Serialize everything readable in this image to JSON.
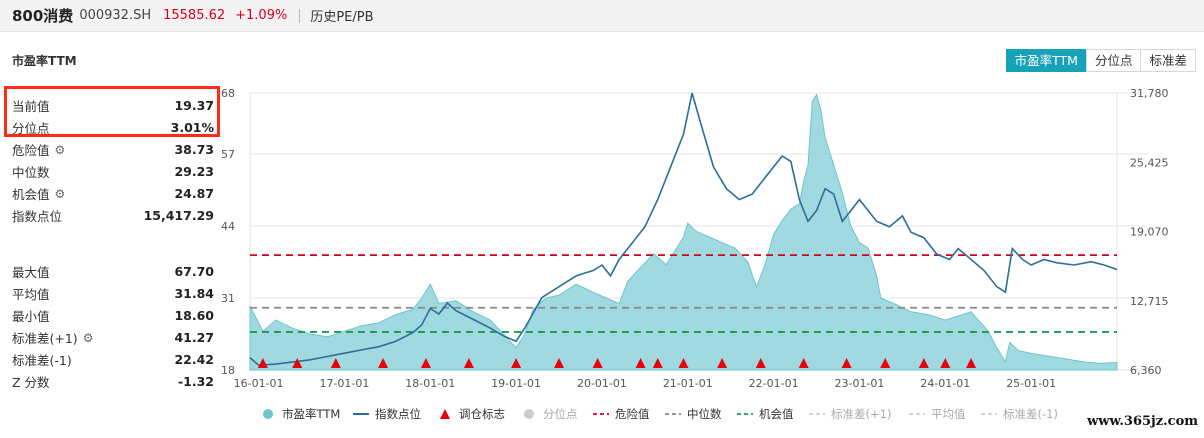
{
  "header": {
    "name": "800消费",
    "code": "000932.SH",
    "price": "15585.62",
    "change": "+1.09%",
    "history": "历史PE/PB"
  },
  "panel": {
    "title": "市盈率TTM",
    "tabs": [
      "市盈率TTM",
      "分位点",
      "标准差"
    ]
  },
  "stats": [
    {
      "label": "当前值",
      "value": "19.37",
      "gear": false
    },
    {
      "label": "分位点",
      "value": "3.01%",
      "gear": false
    },
    {
      "label": "危险值",
      "value": "38.73",
      "gear": true
    },
    {
      "label": "中位数",
      "value": "29.23",
      "gear": false
    },
    {
      "label": "机会值",
      "value": "24.87",
      "gear": true
    },
    {
      "label": "指数点位",
      "value": "15,417.29",
      "gear": false
    },
    {
      "label": "最大值",
      "value": "67.70",
      "gear": false
    },
    {
      "label": "平均值",
      "value": "31.84",
      "gear": false
    },
    {
      "label": "最小值",
      "value": "18.60",
      "gear": false
    },
    {
      "label": "标准差(+1)",
      "value": "41.27",
      "gear": true
    },
    {
      "label": "标准差(-1)",
      "value": "22.42",
      "gear": false
    },
    {
      "label": "Z 分数",
      "value": "-1.32",
      "gear": false
    }
  ],
  "colors": {
    "accent": "#17a2b8",
    "area": "#8fd3da",
    "index_line": "#2a6f9a",
    "danger": "#d0021b",
    "median": "#888888",
    "opportunity": "#1a9a4a",
    "marker": "#e8000b"
  },
  "watermark": "www.365jz.com",
  "chart_data": {
    "type": "area",
    "x_ticks": [
      "16-01-01",
      "17-01-01",
      "18-01-01",
      "19-01-01",
      "20-01-01",
      "21-01-01",
      "22-01-01",
      "23-01-01",
      "24-01-01",
      "25-01-01"
    ],
    "x_range": [
      2015.9,
      2026.0
    ],
    "left_axis": {
      "ticks": [
        18,
        31,
        44,
        57,
        68
      ],
      "range": [
        18,
        68
      ]
    },
    "right_axis": {
      "ticks": [
        "6,360",
        "12,715",
        "19,070",
        "25,425",
        "31,780"
      ],
      "tick_values": [
        6360,
        12715,
        19070,
        25425,
        31780
      ],
      "range": [
        6360,
        31780
      ]
    },
    "reference_lines": {
      "danger": 38.73,
      "median": 29.23,
      "opportunity": 24.87
    },
    "series": [
      {
        "name": "市盈率TTM",
        "points": [
          [
            2015.9,
            29.5
          ],
          [
            2016.05,
            25.0
          ],
          [
            2016.2,
            27.0
          ],
          [
            2016.4,
            25.5
          ],
          [
            2016.6,
            24.5
          ],
          [
            2016.8,
            24.0
          ],
          [
            2017.0,
            25.0
          ],
          [
            2017.2,
            26.0
          ],
          [
            2017.4,
            26.5
          ],
          [
            2017.6,
            28.0
          ],
          [
            2017.8,
            29.0
          ],
          [
            2017.9,
            31.0
          ],
          [
            2018.0,
            33.5
          ],
          [
            2018.1,
            30.0
          ],
          [
            2018.3,
            30.5
          ],
          [
            2018.5,
            28.5
          ],
          [
            2018.7,
            27.0
          ],
          [
            2018.85,
            24.5
          ],
          [
            2019.0,
            22.0
          ],
          [
            2019.1,
            24.5
          ],
          [
            2019.2,
            29.0
          ],
          [
            2019.35,
            31.0
          ],
          [
            2019.5,
            31.5
          ],
          [
            2019.7,
            33.5
          ],
          [
            2019.9,
            32.0
          ],
          [
            2020.05,
            31.0
          ],
          [
            2020.2,
            30.0
          ],
          [
            2020.3,
            34.0
          ],
          [
            2020.45,
            36.5
          ],
          [
            2020.6,
            39.0
          ],
          [
            2020.75,
            37.0
          ],
          [
            2020.95,
            42.0
          ],
          [
            2021.0,
            44.5
          ],
          [
            2021.1,
            43.0
          ],
          [
            2021.25,
            42.0
          ],
          [
            2021.4,
            41.0
          ],
          [
            2021.55,
            40.0
          ],
          [
            2021.7,
            37.5
          ],
          [
            2021.8,
            33.0
          ],
          [
            2021.9,
            37.0
          ],
          [
            2022.0,
            42.5
          ],
          [
            2022.1,
            45.0
          ],
          [
            2022.2,
            47.0
          ],
          [
            2022.3,
            48.0
          ],
          [
            2022.35,
            52.0
          ],
          [
            2022.4,
            55.0
          ],
          [
            2022.45,
            66.5
          ],
          [
            2022.5,
            67.7
          ],
          [
            2022.55,
            65.0
          ],
          [
            2022.6,
            60.0
          ],
          [
            2022.7,
            55.0
          ],
          [
            2022.8,
            50.0
          ],
          [
            2022.9,
            44.0
          ],
          [
            2023.0,
            41.0
          ],
          [
            2023.1,
            40.0
          ],
          [
            2023.2,
            35.0
          ],
          [
            2023.25,
            31.0
          ],
          [
            2023.4,
            30.0
          ],
          [
            2023.6,
            28.5
          ],
          [
            2023.8,
            28.0
          ],
          [
            2024.0,
            27.0
          ],
          [
            2024.2,
            28.0
          ],
          [
            2024.3,
            28.5
          ],
          [
            2024.5,
            25.0
          ],
          [
            2024.6,
            22.0
          ],
          [
            2024.7,
            19.5
          ],
          [
            2024.75,
            23.0
          ],
          [
            2024.85,
            21.5
          ],
          [
            2025.0,
            21.0
          ],
          [
            2025.2,
            20.5
          ],
          [
            2025.4,
            20.0
          ],
          [
            2025.6,
            19.5
          ],
          [
            2025.8,
            19.2
          ],
          [
            2026.0,
            19.37
          ]
        ]
      },
      {
        "name": "指数点位",
        "points": [
          [
            2015.9,
            7500
          ],
          [
            2016.0,
            6800
          ],
          [
            2016.2,
            6900
          ],
          [
            2016.4,
            7100
          ],
          [
            2016.6,
            7300
          ],
          [
            2016.8,
            7600
          ],
          [
            2017.0,
            7900
          ],
          [
            2017.2,
            8200
          ],
          [
            2017.4,
            8500
          ],
          [
            2017.6,
            9000
          ],
          [
            2017.8,
            9800
          ],
          [
            2017.9,
            10500
          ],
          [
            2018.0,
            12000
          ],
          [
            2018.1,
            11500
          ],
          [
            2018.2,
            12500
          ],
          [
            2018.3,
            11800
          ],
          [
            2018.5,
            11000
          ],
          [
            2018.7,
            10200
          ],
          [
            2018.85,
            9500
          ],
          [
            2019.0,
            9000
          ],
          [
            2019.1,
            10200
          ],
          [
            2019.3,
            13000
          ],
          [
            2019.5,
            14000
          ],
          [
            2019.7,
            15000
          ],
          [
            2019.9,
            15500
          ],
          [
            2020.0,
            16000
          ],
          [
            2020.1,
            15000
          ],
          [
            2020.2,
            16500
          ],
          [
            2020.35,
            18000
          ],
          [
            2020.5,
            19500
          ],
          [
            2020.65,
            22000
          ],
          [
            2020.8,
            25000
          ],
          [
            2020.95,
            28000
          ],
          [
            2021.05,
            31780
          ],
          [
            2021.15,
            29000
          ],
          [
            2021.3,
            25000
          ],
          [
            2021.45,
            23000
          ],
          [
            2021.6,
            22000
          ],
          [
            2021.75,
            22500
          ],
          [
            2021.9,
            24000
          ],
          [
            2022.0,
            25000
          ],
          [
            2022.1,
            26000
          ],
          [
            2022.2,
            25500
          ],
          [
            2022.3,
            22000
          ],
          [
            2022.4,
            20000
          ],
          [
            2022.5,
            21000
          ],
          [
            2022.6,
            23000
          ],
          [
            2022.7,
            22500
          ],
          [
            2022.8,
            20000
          ],
          [
            2022.9,
            21000
          ],
          [
            2023.0,
            22000
          ],
          [
            2023.1,
            21000
          ],
          [
            2023.2,
            20000
          ],
          [
            2023.35,
            19500
          ],
          [
            2023.5,
            20500
          ],
          [
            2023.6,
            19000
          ],
          [
            2023.75,
            18500
          ],
          [
            2023.9,
            17000
          ],
          [
            2024.05,
            16500
          ],
          [
            2024.15,
            17500
          ],
          [
            2024.3,
            16500
          ],
          [
            2024.45,
            15500
          ],
          [
            2024.6,
            14000
          ],
          [
            2024.7,
            13500
          ],
          [
            2024.78,
            17500
          ],
          [
            2024.9,
            16500
          ],
          [
            2025.0,
            16000
          ],
          [
            2025.15,
            16500
          ],
          [
            2025.3,
            16200
          ],
          [
            2025.5,
            16000
          ],
          [
            2025.7,
            16300
          ],
          [
            2025.85,
            16000
          ],
          [
            2026.0,
            15585
          ]
        ]
      }
    ],
    "markers": [
      2016.05,
      2016.45,
      2016.9,
      2017.45,
      2017.95,
      2018.45,
      2019.0,
      2019.5,
      2019.95,
      2020.45,
      2020.65,
      2020.95,
      2021.4,
      2021.85,
      2022.35,
      2022.85,
      2023.3,
      2023.75,
      2024.0,
      2024.3
    ],
    "legend": [
      {
        "label": "市盈率TTM",
        "symbol": "circle",
        "color": "#6cc5cf"
      },
      {
        "label": "指数点位",
        "symbol": "line",
        "color": "#2a6f9a"
      },
      {
        "label": "调仓标志",
        "symbol": "triangle",
        "color": "#e8000b"
      },
      {
        "label": "分位点",
        "symbol": "circle",
        "color": "#cccccc"
      },
      {
        "label": "危险值",
        "symbol": "dash",
        "color": "#d0021b"
      },
      {
        "label": "中位数",
        "symbol": "dash",
        "color": "#888888"
      },
      {
        "label": "机会值",
        "symbol": "dash",
        "color": "#1a9a4a"
      },
      {
        "label": "标准差(+1)",
        "symbol": "dash",
        "color": "#cccccc"
      },
      {
        "label": "平均值",
        "symbol": "dash",
        "color": "#cccccc"
      },
      {
        "label": "标准差(-1)",
        "symbol": "dash",
        "color": "#cccccc"
      }
    ]
  }
}
